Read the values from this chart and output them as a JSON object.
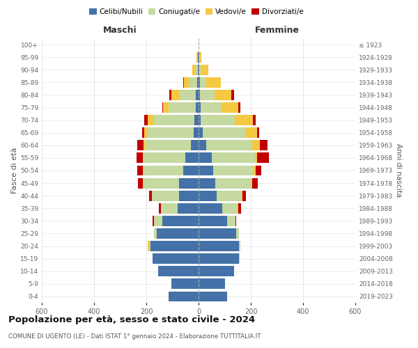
{
  "age_groups": [
    "0-4",
    "5-9",
    "10-14",
    "15-19",
    "20-24",
    "25-29",
    "30-34",
    "35-39",
    "40-44",
    "45-49",
    "50-54",
    "55-59",
    "60-64",
    "65-69",
    "70-74",
    "75-79",
    "80-84",
    "85-89",
    "90-94",
    "95-99",
    "100+"
  ],
  "birth_years": [
    "2019-2023",
    "2014-2018",
    "2009-2013",
    "2004-2008",
    "1999-2003",
    "1994-1998",
    "1989-1993",
    "1984-1988",
    "1979-1983",
    "1974-1978",
    "1969-1973",
    "1964-1968",
    "1959-1963",
    "1954-1958",
    "1949-1953",
    "1944-1948",
    "1939-1943",
    "1934-1938",
    "1929-1933",
    "1924-1928",
    "≤ 1923"
  ],
  "maschi": {
    "celibi": [
      115,
      105,
      155,
      175,
      185,
      160,
      140,
      80,
      75,
      75,
      60,
      50,
      30,
      20,
      15,
      10,
      10,
      5,
      2,
      2,
      0
    ],
    "coniugati": [
      0,
      0,
      0,
      2,
      5,
      10,
      30,
      65,
      105,
      135,
      150,
      160,
      175,
      175,
      155,
      105,
      65,
      30,
      8,
      2,
      0
    ],
    "vedovi": [
      0,
      0,
      0,
      0,
      5,
      0,
      0,
      0,
      0,
      3,
      3,
      3,
      5,
      12,
      25,
      20,
      30,
      20,
      15,
      3,
      0
    ],
    "divorziati": [
      0,
      0,
      0,
      0,
      0,
      0,
      5,
      8,
      10,
      20,
      22,
      25,
      25,
      10,
      12,
      5,
      8,
      5,
      0,
      0,
      0
    ]
  },
  "femmine": {
    "nubili": [
      110,
      100,
      135,
      155,
      155,
      145,
      110,
      90,
      70,
      65,
      55,
      50,
      30,
      15,
      8,
      8,
      5,
      5,
      2,
      2,
      0
    ],
    "coniugate": [
      0,
      0,
      0,
      2,
      5,
      10,
      30,
      60,
      95,
      135,
      155,
      165,
      175,
      165,
      130,
      80,
      55,
      25,
      5,
      0,
      0
    ],
    "vedove": [
      0,
      0,
      0,
      0,
      0,
      0,
      0,
      2,
      3,
      5,
      8,
      10,
      30,
      45,
      70,
      65,
      65,
      55,
      30,
      8,
      0
    ],
    "divorziate": [
      0,
      0,
      0,
      0,
      0,
      0,
      5,
      10,
      12,
      22,
      22,
      45,
      30,
      8,
      10,
      8,
      10,
      0,
      0,
      0,
      0
    ]
  },
  "colors": {
    "celibi": "#4472a8",
    "coniugati": "#c5d9a0",
    "vedovi": "#f5c842",
    "divorziati": "#c00000"
  },
  "xlim": 600,
  "title": "Popolazione per età, sesso e stato civile - 2024",
  "subtitle": "COMUNE DI UGENTO (LE) - Dati ISTAT 1° gennaio 2024 - Elaborazione TUTTITALIA.IT",
  "ylabel_left": "Fasce di età",
  "ylabel_right": "Anni di nascita",
  "xlabel_left": "Maschi",
  "xlabel_right": "Femmine"
}
